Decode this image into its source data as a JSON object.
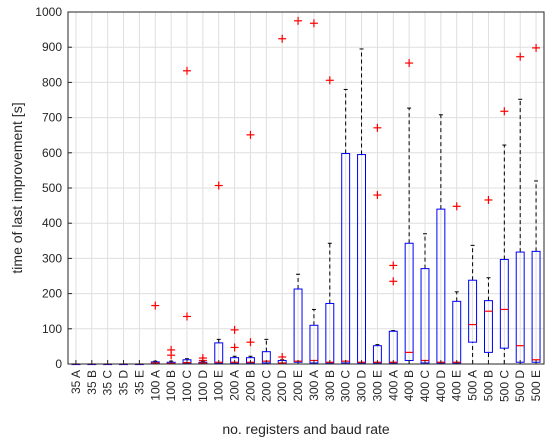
{
  "chart_data": {
    "type": "boxplot",
    "xlabel": "no. registers and baud rate",
    "ylabel": "time of last improvement [s]",
    "ylim": [
      0,
      1000
    ],
    "yticks": [
      0,
      100,
      200,
      300,
      400,
      500,
      600,
      700,
      800,
      900,
      1000
    ],
    "grid": true,
    "colors": {
      "box": "#0000ff",
      "median": "#ff0000",
      "outlier": "#ff0000",
      "whisker": "#000000",
      "grid": "#dfdfdf",
      "axis": "#262626"
    },
    "categories": [
      "35 A",
      "35 B",
      "35 C",
      "35 D",
      "35 E",
      "100 A",
      "100 B",
      "100 C",
      "100 D",
      "100 E",
      "200 A",
      "200 B",
      "200 C",
      "200 D",
      "200 E",
      "300 A",
      "300 B",
      "300 C",
      "300 D",
      "300 E",
      "400 A",
      "400 B",
      "400 C",
      "400 D",
      "400 E",
      "500 A",
      "500 B",
      "500 C",
      "500 D",
      "500 E"
    ],
    "boxes": [
      {
        "label": "35 A",
        "whisker_low": 0,
        "q1": 0,
        "median": 0,
        "q3": 0,
        "whisker_high": 0,
        "outliers": []
      },
      {
        "label": "35 B",
        "whisker_low": 0,
        "q1": 0,
        "median": 0,
        "q3": 0,
        "whisker_high": 0,
        "outliers": []
      },
      {
        "label": "35 C",
        "whisker_low": 0,
        "q1": 0,
        "median": 0,
        "q3": 0,
        "whisker_high": 0,
        "outliers": []
      },
      {
        "label": "35 D",
        "whisker_low": 0,
        "q1": 0,
        "median": 0,
        "q3": 0,
        "whisker_high": 0,
        "outliers": []
      },
      {
        "label": "35 E",
        "whisker_low": 0,
        "q1": 0,
        "median": 0,
        "q3": 0,
        "whisker_high": 0,
        "outliers": []
      },
      {
        "label": "100 A",
        "whisker_low": 0,
        "q1": 1,
        "median": 3,
        "q3": 6,
        "whisker_high": 8,
        "outliers": [
          166
        ]
      },
      {
        "label": "100 B",
        "whisker_low": 0,
        "q1": 1,
        "median": 2,
        "q3": 5,
        "whisker_high": 8,
        "outliers": [
          25,
          40
        ]
      },
      {
        "label": "100 C",
        "whisker_low": 0,
        "q1": 2,
        "median": 4,
        "q3": 12,
        "whisker_high": 15,
        "outliers": [
          135,
          833
        ]
      },
      {
        "label": "100 D",
        "whisker_low": 0,
        "q1": 1,
        "median": 3,
        "q3": 5,
        "whisker_high": 8,
        "outliers": [
          10,
          17
        ]
      },
      {
        "label": "100 E",
        "whisker_low": 0,
        "q1": 2,
        "median": 5,
        "q3": 60,
        "whisker_high": 70,
        "outliers": [
          507
        ]
      },
      {
        "label": "200 A",
        "whisker_low": 0,
        "q1": 2,
        "median": 5,
        "q3": 18,
        "whisker_high": 22,
        "outliers": [
          47,
          97
        ]
      },
      {
        "label": "200 B",
        "whisker_low": 0,
        "q1": 3,
        "median": 5,
        "q3": 18,
        "whisker_high": 22,
        "outliers": [
          62,
          651
        ]
      },
      {
        "label": "200 C",
        "whisker_low": 0,
        "q1": 3,
        "median": 8,
        "q3": 35,
        "whisker_high": 70,
        "outliers": []
      },
      {
        "label": "200 D",
        "whisker_low": 0,
        "q1": 1,
        "median": 3,
        "q3": 10,
        "whisker_high": 12,
        "outliers": [
          20,
          924
        ]
      },
      {
        "label": "200 E",
        "whisker_low": 0,
        "q1": 5,
        "median": 8,
        "q3": 213,
        "whisker_high": 255,
        "outliers": [
          975
        ]
      },
      {
        "label": "300 A",
        "whisker_low": 0,
        "q1": 3,
        "median": 10,
        "q3": 110,
        "whisker_high": 155,
        "outliers": [
          968
        ]
      },
      {
        "label": "300 B",
        "whisker_low": 0,
        "q1": 3,
        "median": 5,
        "q3": 172,
        "whisker_high": 343,
        "outliers": [
          806
        ]
      },
      {
        "label": "300 C",
        "whisker_low": 0,
        "q1": 3,
        "median": 8,
        "q3": 598,
        "whisker_high": 780,
        "outliers": []
      },
      {
        "label": "300 D",
        "whisker_low": 0,
        "q1": 3,
        "median": 5,
        "q3": 595,
        "whisker_high": 895,
        "outliers": []
      },
      {
        "label": "300 E",
        "whisker_low": 0,
        "q1": 3,
        "median": 5,
        "q3": 52,
        "whisker_high": 55,
        "outliers": [
          480,
          671
        ]
      },
      {
        "label": "400 A",
        "whisker_low": 0,
        "q1": 3,
        "median": 5,
        "q3": 93,
        "whisker_high": 95,
        "outliers": [
          235,
          280
        ]
      },
      {
        "label": "400 B",
        "whisker_low": 0,
        "q1": 10,
        "median": 33,
        "q3": 343,
        "whisker_high": 727,
        "outliers": [
          855
        ]
      },
      {
        "label": "400 C",
        "whisker_low": 0,
        "q1": 3,
        "median": 10,
        "q3": 271,
        "whisker_high": 370,
        "outliers": []
      },
      {
        "label": "400 D",
        "whisker_low": 0,
        "q1": 3,
        "median": 5,
        "q3": 440,
        "whisker_high": 708,
        "outliers": []
      },
      {
        "label": "400 E",
        "whisker_low": 0,
        "q1": 3,
        "median": 5,
        "q3": 178,
        "whisker_high": 205,
        "outliers": [
          448
        ]
      },
      {
        "label": "500 A",
        "whisker_low": 0,
        "q1": 62,
        "median": 112,
        "q3": 238,
        "whisker_high": 337,
        "outliers": []
      },
      {
        "label": "500 B",
        "whisker_low": 0,
        "q1": 33,
        "median": 150,
        "q3": 180,
        "whisker_high": 245,
        "outliers": [
          466
        ]
      },
      {
        "label": "500 C",
        "whisker_low": 0,
        "q1": 45,
        "median": 155,
        "q3": 297,
        "whisker_high": 622,
        "outliers": [
          718
        ]
      },
      {
        "label": "500 D",
        "whisker_low": 0,
        "q1": 5,
        "median": 52,
        "q3": 318,
        "whisker_high": 752,
        "outliers": [
          873
        ]
      },
      {
        "label": "500 E",
        "whisker_low": 0,
        "q1": 5,
        "median": 12,
        "q3": 320,
        "whisker_high": 520,
        "outliers": [
          898
        ]
      }
    ]
  }
}
